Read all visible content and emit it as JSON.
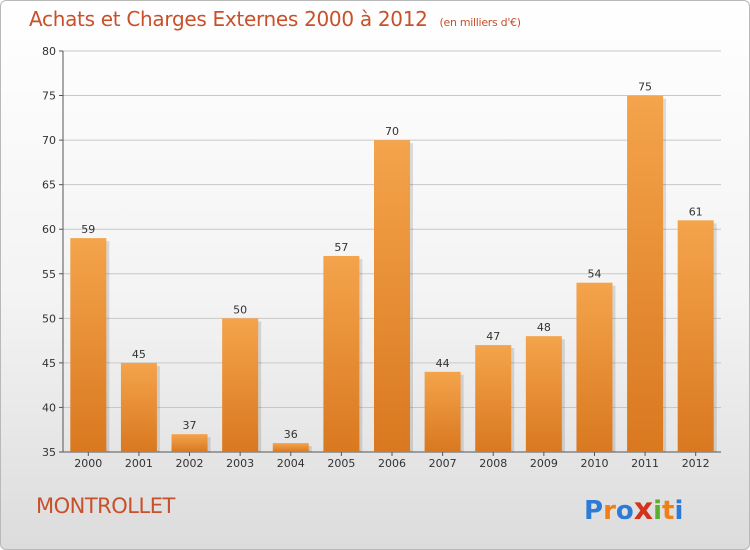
{
  "title": "Achats et Charges Externes 2000 à 2012",
  "unit": "(en milliers d'€)",
  "commune": "MONTROLLET",
  "logo": {
    "text": "Proxiti",
    "letters": [
      {
        "ch": "P",
        "color": "#2d7bd6"
      },
      {
        "ch": "r",
        "color": "#f07f16"
      },
      {
        "ch": "o",
        "color": "#2d7bd6"
      },
      {
        "ch": "x",
        "color": "#d4321c"
      },
      {
        "ch": "i",
        "color": "#5ab031"
      },
      {
        "ch": "t",
        "color": "#f07f16"
      },
      {
        "ch": "i",
        "color": "#2d7bd6"
      }
    ]
  },
  "colors": {
    "title": "#c8502a",
    "bar_top": "#f4a44c",
    "bar_bottom": "#d9781f",
    "grid": "#c8c8c8"
  },
  "chart_data": {
    "type": "bar",
    "categories": [
      "2000",
      "2001",
      "2002",
      "2003",
      "2004",
      "2005",
      "2006",
      "2007",
      "2008",
      "2009",
      "2010",
      "2011",
      "2012"
    ],
    "values": [
      59,
      45,
      37,
      50,
      36,
      57,
      70,
      44,
      47,
      48,
      54,
      75,
      61
    ],
    "ylim": [
      35,
      80
    ],
    "yticks": [
      35,
      40,
      45,
      50,
      55,
      60,
      65,
      70,
      75,
      80
    ],
    "grid": true,
    "data_labels": true
  }
}
